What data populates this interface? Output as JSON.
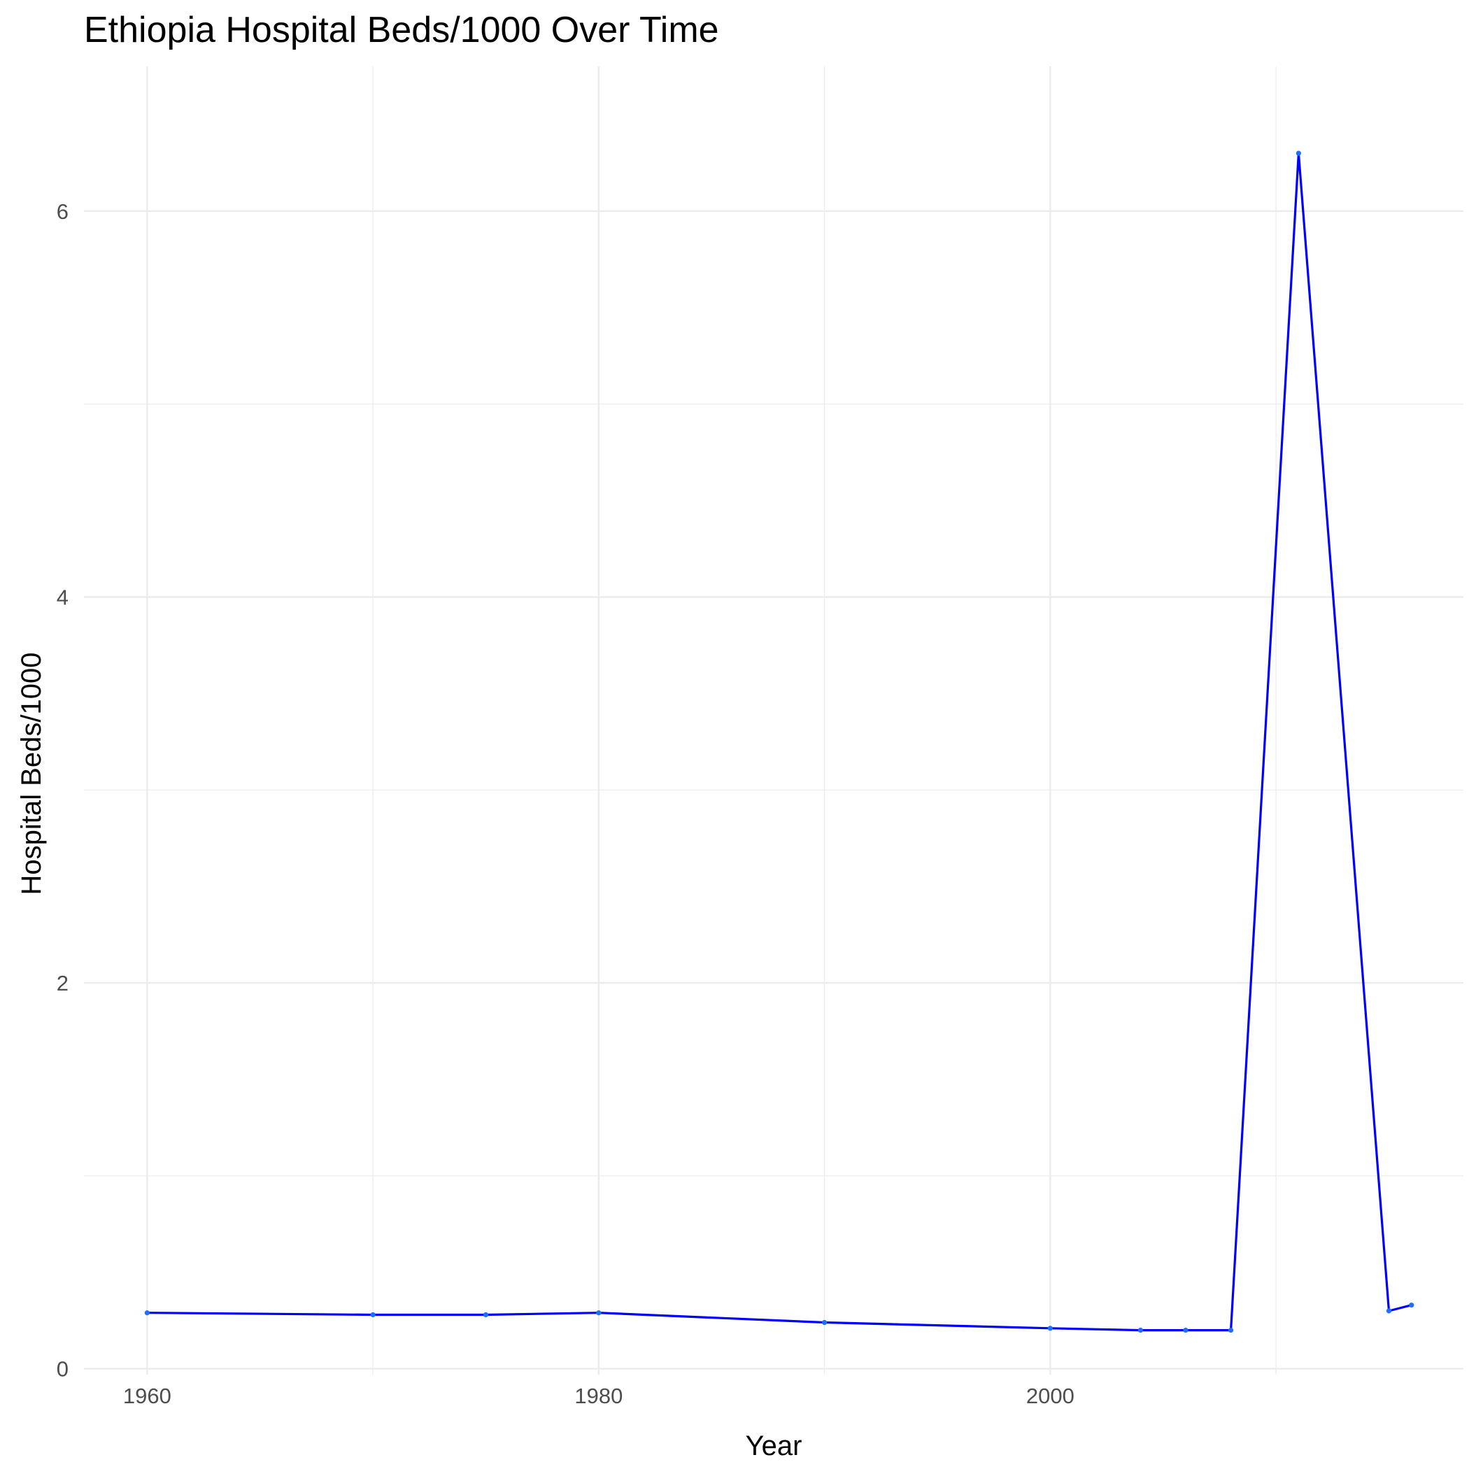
{
  "chart_data": {
    "type": "line",
    "title": "Ethiopia Hospital Beds/1000 Over Time",
    "xlabel": "Year",
    "ylabel": "Hospital Beds/1000",
    "xlim": [
      1957.2,
      2018.3
    ],
    "ylim": [
      -0.03,
      6.75
    ],
    "x_ticks": [
      1960,
      1980,
      2000
    ],
    "x_minor_ticks": [
      1970,
      1990,
      2010
    ],
    "y_ticks": [
      0,
      2,
      4,
      6
    ],
    "y_minor_ticks": [
      1,
      3,
      5
    ],
    "grid": true,
    "line_color": "#0000ff",
    "point_color": "#1e6fff",
    "series": [
      {
        "x": [
          1960,
          1970,
          1975,
          1980,
          1990,
          2000,
          2004,
          2006,
          2008,
          2011,
          2015,
          2016
        ],
        "values": [
          0.29,
          0.28,
          0.28,
          0.29,
          0.24,
          0.21,
          0.2,
          0.2,
          0.2,
          6.3,
          0.3,
          0.33
        ]
      }
    ]
  }
}
